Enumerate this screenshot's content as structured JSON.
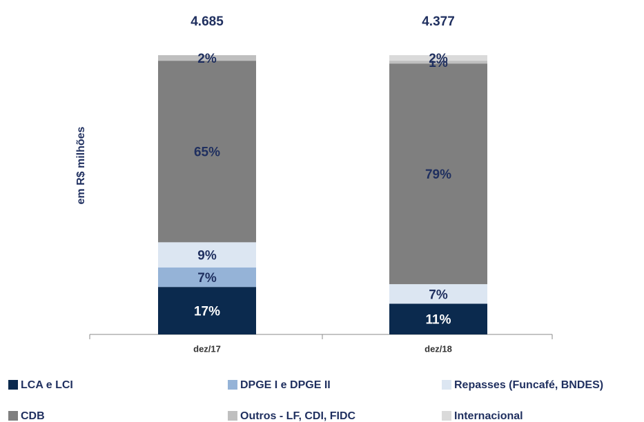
{
  "chart_data": {
    "type": "bar",
    "stacked": true,
    "y_axis_label": "em R$ milhões",
    "categories": [
      "dez/17",
      "dez/18"
    ],
    "annotations": [
      "4.685",
      "4.377"
    ],
    "ylim": [
      0,
      100
    ],
    "series": [
      {
        "name": "LCA e LCI",
        "color": "#0b2a4e",
        "values": [
          17,
          11
        ],
        "value_labels": [
          "17%",
          "11%"
        ]
      },
      {
        "name": "DPGE I e DPGE II",
        "color": "#95b3d7",
        "values": [
          7,
          null
        ],
        "value_labels": [
          "7%",
          null
        ]
      },
      {
        "name": "Repasses (Funcafé, BNDES)",
        "color": "#dce6f2",
        "values": [
          9,
          7
        ],
        "value_labels": [
          "9%",
          "7%"
        ]
      },
      {
        "name": "CDB",
        "color": "#7f7f7f",
        "values": [
          65,
          79
        ],
        "value_labels": [
          "65%",
          "79%"
        ]
      },
      {
        "name": "Outros - LF, CDI, FIDC",
        "color": "#bfbfbf",
        "values": [
          2,
          1
        ],
        "value_labels": [
          "2%",
          "1%"
        ]
      },
      {
        "name": "Internacional",
        "color": "#dadada",
        "values": [
          null,
          2
        ],
        "value_labels": [
          null,
          "2%"
        ]
      }
    ]
  }
}
